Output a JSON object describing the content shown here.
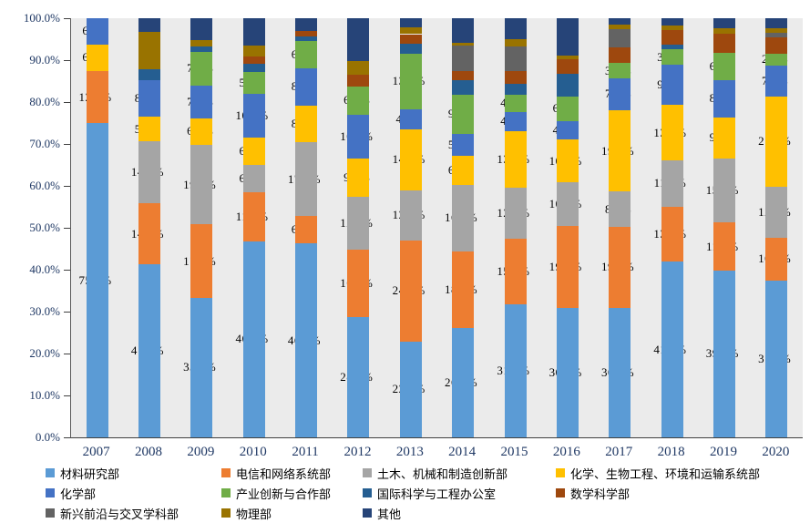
{
  "chart_data": {
    "type": "bar",
    "subtype": "stacked-100-percent",
    "title": "",
    "xlabel": "",
    "ylabel": "",
    "ylim": [
      0,
      100
    ],
    "y_tick_labels": [
      "0.0%",
      "10.0%",
      "20.0%",
      "30.0%",
      "40.0%",
      "50.0%",
      "60.0%",
      "70.0%",
      "80.0%",
      "90.0%",
      "100.0%"
    ],
    "grid": false,
    "legend_position": "bottom",
    "value_label_rule": "data labels shown only for the first 6 series, format 0.0%",
    "categories": [
      "2007",
      "2008",
      "2009",
      "2010",
      "2011",
      "2012",
      "2013",
      "2014",
      "2015",
      "2016",
      "2017",
      "2018",
      "2019",
      "2020"
    ],
    "series": [
      {
        "name": "材料研究部",
        "color": "#5B9BD5",
        "labeled": true,
        "values": [
          75.0,
          41.2,
          33.3,
          46.8,
          46.2,
          28.7,
          22.9,
          26.0,
          31.8,
          30.8,
          30.8,
          41.9,
          39.8,
          37.4
        ]
      },
      {
        "name": "电信和网络系统部",
        "color": "#ED7D31",
        "labeled": true,
        "values": [
          12.5,
          14.7,
          17.5,
          11.7,
          6.6,
          16.1,
          24.1,
          18.3,
          15.5,
          19.7,
          19.5,
          13.2,
          11.4,
          10.3
        ]
      },
      {
        "name": "土木、机械和制造创新部",
        "color": "#A5A5A5",
        "labeled": true,
        "values": [
          0,
          14.7,
          19.0,
          6.5,
          17.6,
          12.6,
          12.0,
          16.0,
          12.2,
          10.3,
          8.3,
          11.0,
          15.4,
          12.1
        ]
      },
      {
        "name": "化学、生物工程、环境和运输系统部",
        "color": "#FFC000",
        "labeled": true,
        "values": [
          6.3,
          5.9,
          6.3,
          6.5,
          8.8,
          9.2,
          14.5,
          6.9,
          13.5,
          10.3,
          19.5,
          13.2,
          9.8,
          21.5
        ]
      },
      {
        "name": "化学部",
        "color": "#4472C4",
        "labeled": true,
        "values": [
          6.3,
          8.8,
          7.9,
          10.4,
          8.8,
          10.3,
          4.8,
          5.3,
          4.7,
          4.3,
          7.5,
          9.6,
          8.9,
          7.5
        ]
      },
      {
        "name": "产业创新与合作部",
        "color": "#70AD47",
        "labeled": true,
        "values": [
          0,
          0,
          7.9,
          5.2,
          6.6,
          6.9,
          13.3,
          9.2,
          4.1,
          6.0,
          3.8,
          3.7,
          6.5,
          2.8
        ]
      },
      {
        "name": "国际科学与工程办公室",
        "color": "#255E91",
        "labeled": false,
        "values": [
          0,
          2.6,
          1.3,
          2.0,
          1.1,
          0,
          2.4,
          3.6,
          2.5,
          5.3,
          0,
          1.2,
          0,
          0
        ]
      },
      {
        "name": "数学科学部",
        "color": "#9E480E",
        "labeled": false,
        "values": [
          0,
          0,
          0,
          1.8,
          1.2,
          2.7,
          2.2,
          2.2,
          3.0,
          3.6,
          3.6,
          3.4,
          4.6,
          3.8
        ]
      },
      {
        "name": "新兴前沿与交叉学科部",
        "color": "#636363",
        "labeled": false,
        "values": [
          0,
          0,
          0,
          0,
          0,
          0,
          0,
          5.9,
          6.0,
          0,
          4.5,
          0,
          0,
          1.1
        ]
      },
      {
        "name": "物理部",
        "color": "#997300",
        "labeled": false,
        "values": [
          0,
          8.8,
          1.6,
          2.5,
          0,
          3.3,
          1.6,
          0.7,
          1.7,
          0.7,
          1.0,
          1.0,
          1.2,
          1.1
        ]
      },
      {
        "name": "其他",
        "color": "#264478",
        "labeled": false,
        "values": [
          0,
          3.3,
          5.2,
          6.6,
          3.1,
          10.2,
          2.2,
          5.9,
          5.0,
          9.0,
          1.5,
          1.8,
          2.4,
          2.4
        ]
      }
    ],
    "colors": {
      "plot_background": "#EBEBEB",
      "axis_text": "#1F3864",
      "data_label_text": "#000000",
      "axis_line": "#595959"
    }
  }
}
